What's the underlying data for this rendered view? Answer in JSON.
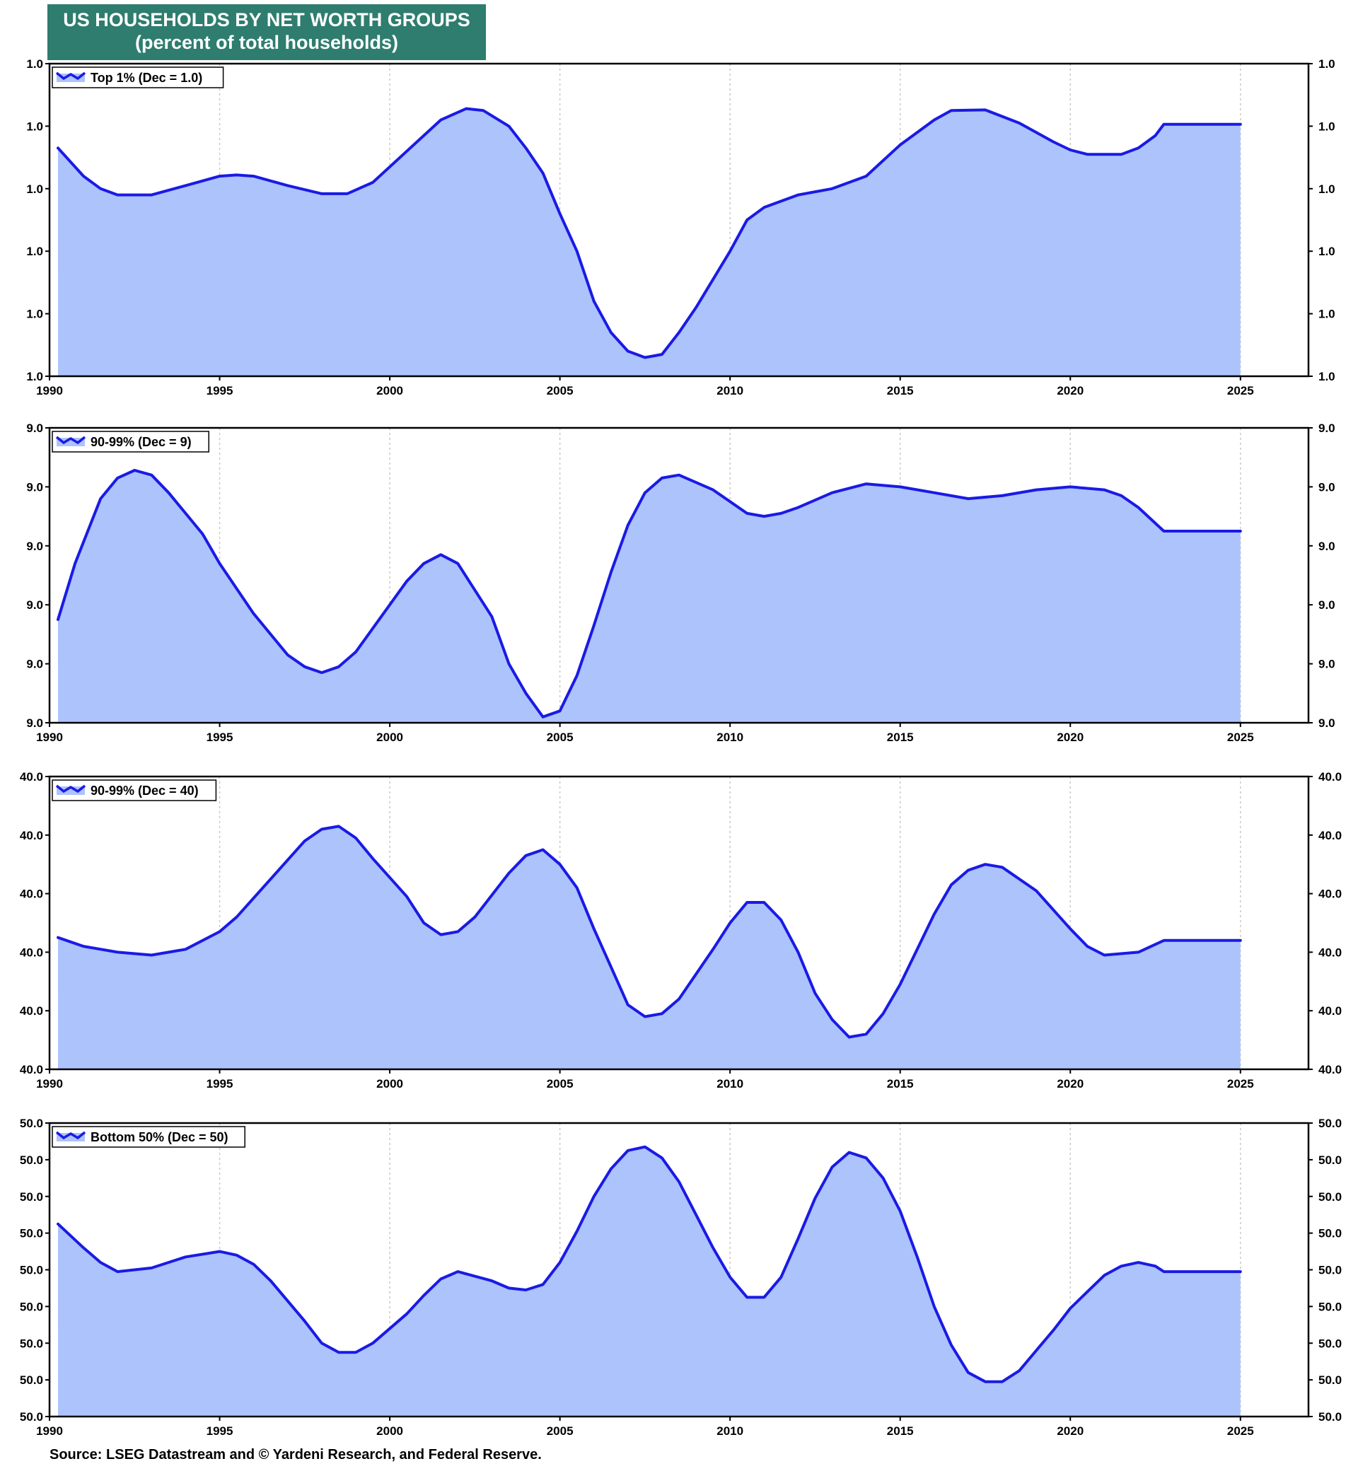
{
  "header": {
    "title": "US HOUSEHOLDS BY NET WORTH GROUPS",
    "subtitle": "(percent of total households)"
  },
  "footer": {
    "source": "Source: LSEG Datastream and © Yardeni Research, and Federal Reserve."
  },
  "colors": {
    "title_bg": "#2e7d6f",
    "line": "#1a1ae6",
    "fill": "#adc3fb",
    "grid": "#c8c8c8"
  },
  "chart_data": [
    {
      "type": "area",
      "series": [
        {
          "name": "Top 1% (Dec = 1.0)"
        }
      ],
      "y_tick_labels": [
        "1.0",
        "1.0",
        "1.0",
        "1.0",
        "1.0",
        "1.0"
      ],
      "x_ticks": [
        1990,
        1995,
        2000,
        2005,
        2010,
        2015,
        2020,
        2025
      ],
      "xlim": [
        1990,
        2027
      ],
      "ylim": [
        0,
        5
      ],
      "grid": "vertical dotted",
      "legend": "top-left",
      "points": [
        [
          1990.25,
          3.65
        ],
        [
          1991.0,
          3.2
        ],
        [
          1991.5,
          3.0
        ],
        [
          1992.0,
          2.9
        ],
        [
          1993.0,
          2.9
        ],
        [
          1994.0,
          3.05
        ],
        [
          1995.0,
          3.2
        ],
        [
          1995.5,
          3.22
        ],
        [
          1996.0,
          3.2
        ],
        [
          1997.0,
          3.05
        ],
        [
          1998.0,
          2.92
        ],
        [
          1998.75,
          2.92
        ],
        [
          1999.5,
          3.1
        ],
        [
          2000.5,
          3.6
        ],
        [
          2001.5,
          4.1
        ],
        [
          2002.25,
          4.28
        ],
        [
          2002.75,
          4.25
        ],
        [
          2003.5,
          4.0
        ],
        [
          2004.0,
          3.65
        ],
        [
          2004.5,
          3.25
        ],
        [
          2005.0,
          2.6
        ],
        [
          2005.5,
          2.0
        ],
        [
          2006.0,
          1.2
        ],
        [
          2006.5,
          0.7
        ],
        [
          2007.0,
          0.4
        ],
        [
          2007.5,
          0.3
        ],
        [
          2008.0,
          0.35
        ],
        [
          2008.5,
          0.7
        ],
        [
          2009.0,
          1.1
        ],
        [
          2010.0,
          2.0
        ],
        [
          2010.5,
          2.5
        ],
        [
          2011.0,
          2.7
        ],
        [
          2012.0,
          2.9
        ],
        [
          2013.0,
          3.0
        ],
        [
          2014.0,
          3.2
        ],
        [
          2014.5,
          3.45
        ],
        [
          2015.0,
          3.7
        ],
        [
          2016.0,
          4.1
        ],
        [
          2016.5,
          4.25
        ],
        [
          2017.5,
          4.26
        ],
        [
          2018.5,
          4.05
        ],
        [
          2019.5,
          3.75
        ],
        [
          2020.0,
          3.62
        ],
        [
          2020.5,
          3.55
        ],
        [
          2021.5,
          3.55
        ],
        [
          2022.0,
          3.65
        ],
        [
          2022.5,
          3.85
        ],
        [
          2022.75,
          4.03
        ],
        [
          2025.0,
          4.03
        ]
      ]
    },
    {
      "type": "area",
      "series": [
        {
          "name": "90-99% (Dec = 9)"
        }
      ],
      "y_tick_labels": [
        "9.0",
        "9.0",
        "9.0",
        "9.0",
        "9.0",
        "9.0"
      ],
      "x_ticks": [
        1990,
        1995,
        2000,
        2005,
        2010,
        2015,
        2020,
        2025
      ],
      "xlim": [
        1990,
        2027
      ],
      "ylim": [
        0,
        5
      ],
      "grid": "vertical dotted",
      "legend": "top-left",
      "points": [
        [
          1990.25,
          1.75
        ],
        [
          1990.75,
          2.7
        ],
        [
          1991.5,
          3.8
        ],
        [
          1992.0,
          4.15
        ],
        [
          1992.5,
          4.28
        ],
        [
          1993.0,
          4.2
        ],
        [
          1993.5,
          3.9
        ],
        [
          1994.5,
          3.2
        ],
        [
          1995.0,
          2.7
        ],
        [
          1996.0,
          1.85
        ],
        [
          1997.0,
          1.15
        ],
        [
          1997.5,
          0.95
        ],
        [
          1998.0,
          0.85
        ],
        [
          1998.5,
          0.95
        ],
        [
          1999.0,
          1.2
        ],
        [
          1999.5,
          1.6
        ],
        [
          2000.5,
          2.4
        ],
        [
          2001.0,
          2.7
        ],
        [
          2001.5,
          2.85
        ],
        [
          2002.0,
          2.7
        ],
        [
          2003.0,
          1.8
        ],
        [
          2003.5,
          1.0
        ],
        [
          2004.0,
          0.5
        ],
        [
          2004.5,
          0.1
        ],
        [
          2005.0,
          0.2
        ],
        [
          2005.5,
          0.8
        ],
        [
          2006.0,
          1.65
        ],
        [
          2006.5,
          2.55
        ],
        [
          2007.0,
          3.35
        ],
        [
          2007.5,
          3.9
        ],
        [
          2008.0,
          4.15
        ],
        [
          2008.5,
          4.2
        ],
        [
          2009.5,
          3.95
        ],
        [
          2010.5,
          3.55
        ],
        [
          2011.0,
          3.5
        ],
        [
          2011.5,
          3.55
        ],
        [
          2012.0,
          3.65
        ],
        [
          2013.0,
          3.9
        ],
        [
          2014.0,
          4.05
        ],
        [
          2015.0,
          4.0
        ],
        [
          2016.0,
          3.9
        ],
        [
          2017.0,
          3.8
        ],
        [
          2018.0,
          3.85
        ],
        [
          2019.0,
          3.95
        ],
        [
          2020.0,
          4.0
        ],
        [
          2021.0,
          3.95
        ],
        [
          2021.5,
          3.85
        ],
        [
          2022.0,
          3.65
        ],
        [
          2022.75,
          3.25
        ],
        [
          2025.0,
          3.25
        ]
      ]
    },
    {
      "type": "area",
      "series": [
        {
          "name": "90-99% (Dec = 40)"
        }
      ],
      "y_tick_labels": [
        "40.0",
        "40.0",
        "40.0",
        "40.0",
        "40.0",
        "40.0"
      ],
      "x_ticks": [
        1990,
        1995,
        2000,
        2005,
        2010,
        2015,
        2020,
        2025
      ],
      "xlim": [
        1990,
        2027
      ],
      "ylim": [
        0,
        5
      ],
      "grid": "vertical dotted",
      "legend": "top-left",
      "points": [
        [
          1990.25,
          2.25
        ],
        [
          1991.0,
          2.1
        ],
        [
          1992.0,
          2.0
        ],
        [
          1993.0,
          1.95
        ],
        [
          1994.0,
          2.05
        ],
        [
          1995.0,
          2.35
        ],
        [
          1995.5,
          2.6
        ],
        [
          1996.5,
          3.25
        ],
        [
          1997.5,
          3.9
        ],
        [
          1998.0,
          4.1
        ],
        [
          1998.5,
          4.15
        ],
        [
          1999.0,
          3.95
        ],
        [
          1999.5,
          3.6
        ],
        [
          2000.5,
          2.95
        ],
        [
          2001.0,
          2.5
        ],
        [
          2001.5,
          2.3
        ],
        [
          2002.0,
          2.35
        ],
        [
          2002.5,
          2.6
        ],
        [
          2003.5,
          3.35
        ],
        [
          2004.0,
          3.65
        ],
        [
          2004.5,
          3.75
        ],
        [
          2005.0,
          3.5
        ],
        [
          2005.5,
          3.1
        ],
        [
          2006.0,
          2.4
        ],
        [
          2006.5,
          1.75
        ],
        [
          2007.0,
          1.1
        ],
        [
          2007.5,
          0.9
        ],
        [
          2008.0,
          0.95
        ],
        [
          2008.5,
          1.2
        ],
        [
          2009.5,
          2.05
        ],
        [
          2010.0,
          2.5
        ],
        [
          2010.5,
          2.85
        ],
        [
          2011.0,
          2.85
        ],
        [
          2011.5,
          2.55
        ],
        [
          2012.0,
          2.0
        ],
        [
          2012.5,
          1.3
        ],
        [
          2013.0,
          0.85
        ],
        [
          2013.5,
          0.55
        ],
        [
          2014.0,
          0.6
        ],
        [
          2014.5,
          0.95
        ],
        [
          2015.0,
          1.45
        ],
        [
          2015.5,
          2.05
        ],
        [
          2016.0,
          2.65
        ],
        [
          2016.5,
          3.15
        ],
        [
          2017.0,
          3.4
        ],
        [
          2017.5,
          3.5
        ],
        [
          2018.0,
          3.45
        ],
        [
          2019.0,
          3.05
        ],
        [
          2020.0,
          2.4
        ],
        [
          2020.5,
          2.1
        ],
        [
          2021.0,
          1.95
        ],
        [
          2022.0,
          2.0
        ],
        [
          2022.75,
          2.2
        ],
        [
          2025.0,
          2.2
        ]
      ]
    },
    {
      "type": "area",
      "series": [
        {
          "name": "Bottom 50% (Dec = 50)"
        }
      ],
      "y_tick_labels": [
        "50.0",
        "50.0",
        "50.0",
        "50.0",
        "50.0",
        "50.0",
        "50.0",
        "50.0",
        "50.0"
      ],
      "x_ticks": [
        1990,
        1995,
        2000,
        2005,
        2010,
        2015,
        2020,
        2025
      ],
      "xlim": [
        1990,
        2027
      ],
      "ylim": [
        0,
        8
      ],
      "grid": "vertical dotted",
      "legend": "top-left",
      "points": [
        [
          1990.25,
          5.25
        ],
        [
          1991.0,
          4.6
        ],
        [
          1991.5,
          4.2
        ],
        [
          1992.0,
          3.95
        ],
        [
          1993.0,
          4.05
        ],
        [
          1994.0,
          4.35
        ],
        [
          1995.0,
          4.5
        ],
        [
          1995.5,
          4.4
        ],
        [
          1996.0,
          4.15
        ],
        [
          1996.5,
          3.7
        ],
        [
          1997.5,
          2.6
        ],
        [
          1998.0,
          2.0
        ],
        [
          1998.5,
          1.75
        ],
        [
          1999.0,
          1.75
        ],
        [
          1999.5,
          2.0
        ],
        [
          2000.5,
          2.8
        ],
        [
          2001.0,
          3.3
        ],
        [
          2001.5,
          3.75
        ],
        [
          2002.0,
          3.95
        ],
        [
          2003.0,
          3.7
        ],
        [
          2003.5,
          3.5
        ],
        [
          2004.0,
          3.45
        ],
        [
          2004.5,
          3.6
        ],
        [
          2005.0,
          4.2
        ],
        [
          2005.5,
          5.05
        ],
        [
          2006.0,
          6.0
        ],
        [
          2006.5,
          6.75
        ],
        [
          2007.0,
          7.25
        ],
        [
          2007.5,
          7.35
        ],
        [
          2008.0,
          7.05
        ],
        [
          2008.5,
          6.4
        ],
        [
          2009.0,
          5.5
        ],
        [
          2009.5,
          4.6
        ],
        [
          2010.0,
          3.8
        ],
        [
          2010.5,
          3.25
        ],
        [
          2011.0,
          3.25
        ],
        [
          2011.5,
          3.8
        ],
        [
          2012.0,
          4.85
        ],
        [
          2012.5,
          5.95
        ],
        [
          2013.0,
          6.8
        ],
        [
          2013.5,
          7.2
        ],
        [
          2014.0,
          7.05
        ],
        [
          2014.5,
          6.5
        ],
        [
          2015.0,
          5.6
        ],
        [
          2015.5,
          4.35
        ],
        [
          2016.0,
          3.0
        ],
        [
          2016.5,
          1.95
        ],
        [
          2017.0,
          1.2
        ],
        [
          2017.5,
          0.95
        ],
        [
          2018.0,
          0.95
        ],
        [
          2018.5,
          1.25
        ],
        [
          2019.0,
          1.8
        ],
        [
          2019.5,
          2.35
        ],
        [
          2020.0,
          2.95
        ],
        [
          2020.5,
          3.4
        ],
        [
          2021.0,
          3.85
        ],
        [
          2021.5,
          4.1
        ],
        [
          2022.0,
          4.2
        ],
        [
          2022.5,
          4.1
        ],
        [
          2022.75,
          3.95
        ],
        [
          2025.0,
          3.95
        ]
      ]
    }
  ]
}
